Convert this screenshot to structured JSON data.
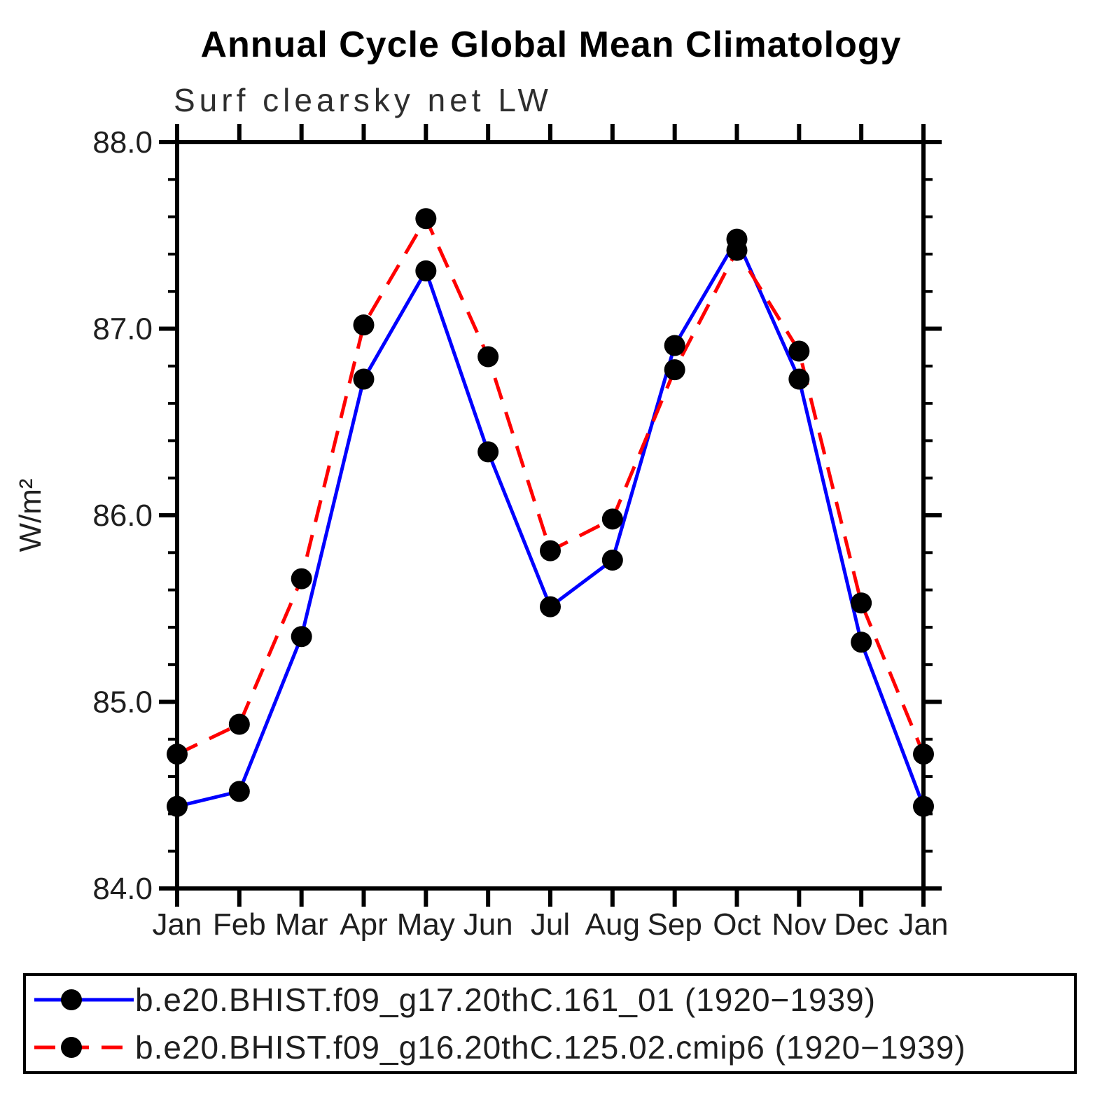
{
  "page": {
    "background": "#ffffff"
  },
  "chart_data": {
    "type": "line",
    "title": "Annual Cycle Global Mean Climatology",
    "subtitle": "Surf clearsky net LW",
    "ylabel": "W/m²",
    "xlabel": "",
    "categories": [
      "Jan",
      "Feb",
      "Mar",
      "Apr",
      "May",
      "Jun",
      "Jul",
      "Aug",
      "Sep",
      "Oct",
      "Nov",
      "Dec",
      "Jan"
    ],
    "ylim": [
      84.0,
      88.0
    ],
    "ytick_values": [
      84.0,
      85.0,
      86.0,
      87.0,
      88.0
    ],
    "ytick_labels": [
      "84.0",
      "85.0",
      "86.0",
      "87.0",
      "88.0"
    ],
    "ytick_minor_step": 0.2,
    "grid": false,
    "legend_position": "bottom",
    "axis_color": "#000000",
    "marker_color": "#000000",
    "series": [
      {
        "name": "b.e20.BHIST.f09_g17.20thC.161_01 (1920−1939)",
        "color": "#0000ff",
        "line_style": "solid",
        "marker": "filled-circle",
        "values": [
          84.44,
          84.52,
          85.35,
          86.73,
          87.31,
          86.34,
          85.51,
          85.76,
          86.91,
          87.48,
          86.73,
          85.32,
          84.44
        ]
      },
      {
        "name": "b.e20.BHIST.f09_g16.20thC.125.02.cmip6 (1920−1939)",
        "color": "#ff0000",
        "line_style": "dashed",
        "marker": "filled-circle",
        "values": [
          84.72,
          84.88,
          85.66,
          87.02,
          87.59,
          86.85,
          85.81,
          85.98,
          86.78,
          87.42,
          86.88,
          85.53,
          84.72
        ]
      }
    ]
  }
}
